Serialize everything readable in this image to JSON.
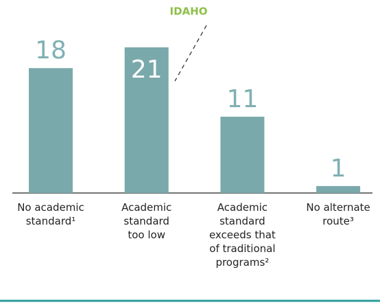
{
  "chart_data": {
    "type": "bar",
    "categories": [
      "No academic standard¹",
      "Academic standard too low",
      "Academic standard exceeds that of traditional programs²",
      "No alternate route³"
    ],
    "values": [
      18,
      21,
      11,
      1
    ],
    "color": "#7aa9ab",
    "annotation": "IDAHO"
  }
}
